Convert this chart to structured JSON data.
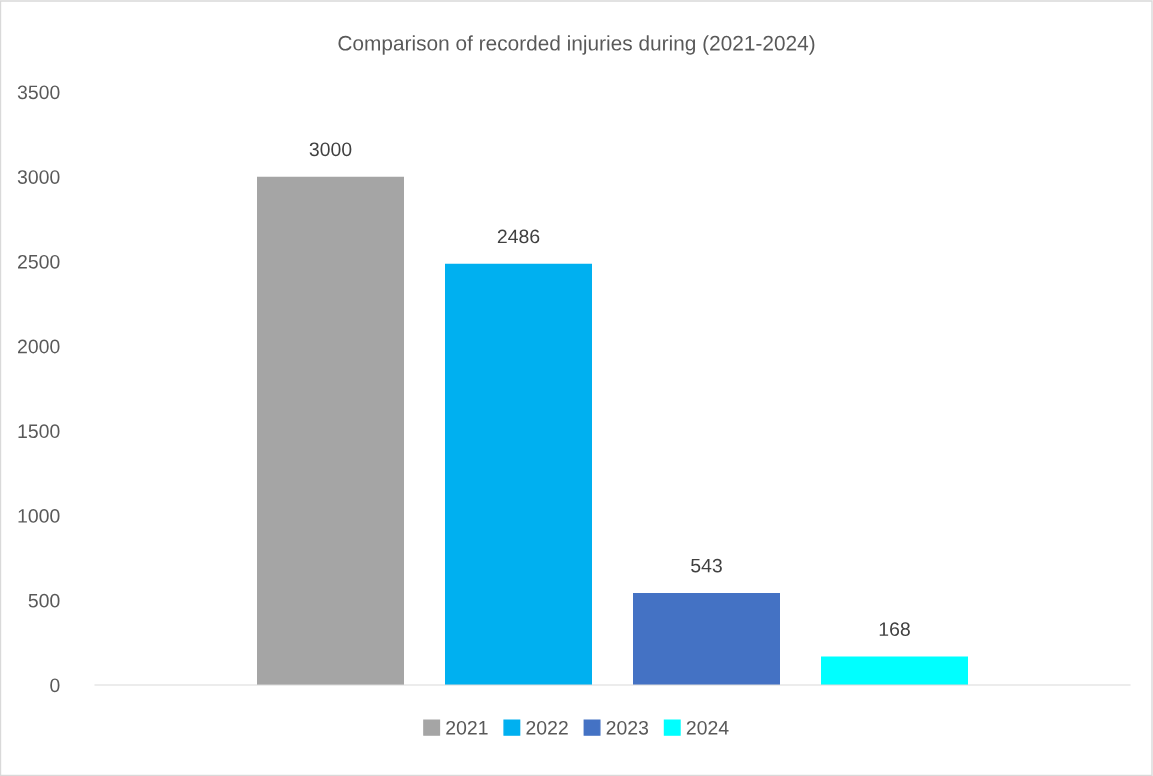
{
  "chart_data": {
    "type": "bar",
    "title": "Comparison of recorded injuries during (2021-2024)",
    "categories": [
      null
    ],
    "series": [
      {
        "name": "2021",
        "color": "#a5a5a5",
        "values": [
          3000
        ]
      },
      {
        "name": "2022",
        "color": "#00b0f0",
        "values": [
          2486
        ]
      },
      {
        "name": "2023",
        "color": "#4472c4",
        "values": [
          543
        ]
      },
      {
        "name": "2024",
        "color": "#00ffff",
        "values": [
          168
        ]
      }
    ],
    "ylim": [
      0,
      3500
    ],
    "yticks": [
      0,
      500,
      1000,
      1500,
      2000,
      2500,
      3000,
      3500
    ],
    "grid": false,
    "legend": "bottom",
    "data_labels": true
  }
}
